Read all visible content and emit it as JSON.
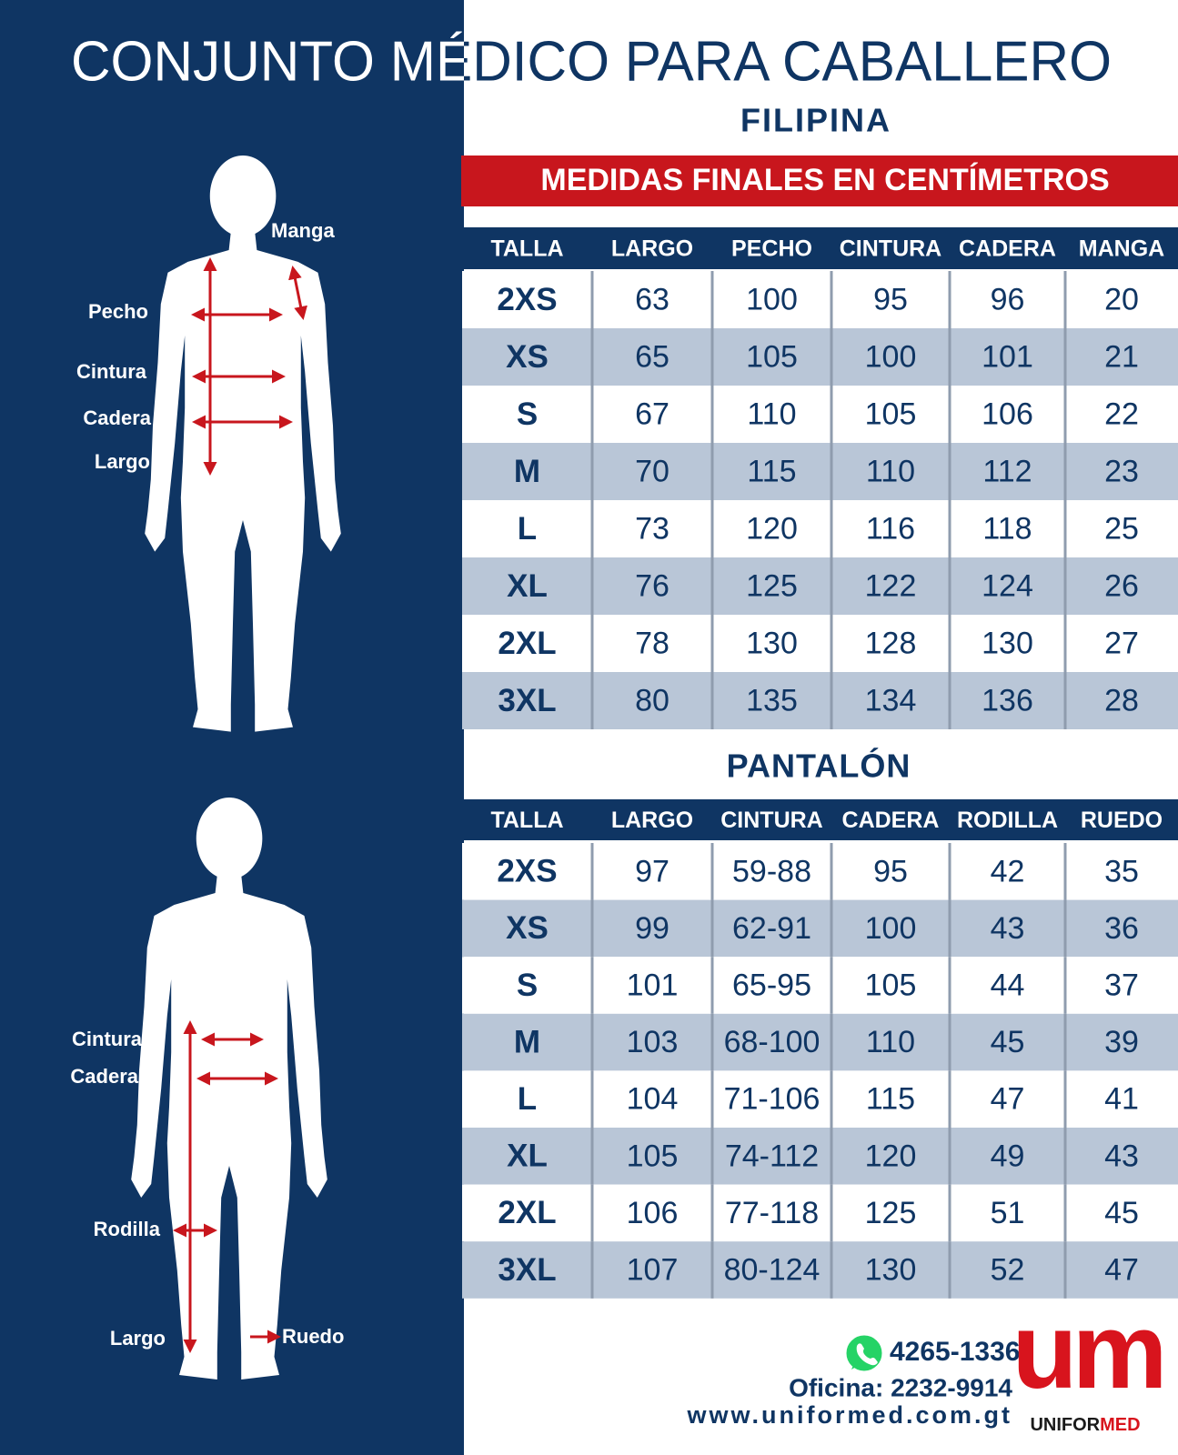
{
  "header": {
    "title": "CONJUNTO MÉDICO PARA CABALLERO"
  },
  "shirt": {
    "subtitle": "FILIPINA",
    "banner": "MEDIDAS FINALES EN CENTÍMETROS",
    "columns": [
      "TALLA",
      "LARGO",
      "PECHO",
      "CINTURA",
      "CADERA",
      "MANGA"
    ],
    "rows": [
      [
        "2XS",
        63,
        100,
        95,
        96,
        20
      ],
      [
        "XS",
        65,
        105,
        100,
        101,
        21
      ],
      [
        "S",
        67,
        110,
        105,
        106,
        22
      ],
      [
        "M",
        70,
        115,
        110,
        112,
        23
      ],
      [
        "L",
        73,
        120,
        116,
        118,
        25
      ],
      [
        "XL",
        76,
        125,
        122,
        124,
        26
      ],
      [
        "2XL",
        78,
        130,
        128,
        130,
        27
      ],
      [
        "3XL",
        80,
        135,
        134,
        136,
        28
      ]
    ]
  },
  "shirt_figure": {
    "labels": [
      "Manga",
      "Pecho",
      "Cintura",
      "Cadera",
      "Largo"
    ]
  },
  "pants": {
    "subtitle": "PANTALÓN",
    "columns": [
      "TALLA",
      "LARGO",
      "CINTURA",
      "CADERA",
      "RODILLA",
      "RUEDO"
    ],
    "rows": [
      [
        "2XS",
        97,
        "59-88",
        95,
        42,
        35
      ],
      [
        "XS",
        99,
        "62-91",
        100,
        43,
        36
      ],
      [
        "S",
        101,
        "65-95",
        105,
        44,
        37
      ],
      [
        "M",
        103,
        "68-100",
        110,
        45,
        39
      ],
      [
        "L",
        104,
        "71-106",
        115,
        47,
        41
      ],
      [
        "XL",
        105,
        "74-112",
        120,
        49,
        43
      ],
      [
        "2XL",
        106,
        "77-118",
        125,
        51,
        45
      ],
      [
        "3XL",
        107,
        "80-124",
        130,
        52,
        47
      ]
    ]
  },
  "pants_figure": {
    "labels": [
      "Cintura",
      "Cadera",
      "Rodilla",
      "Largo",
      "Ruedo"
    ]
  },
  "footer": {
    "whatsapp": "4265-1336",
    "office": "Oficina: 2232-9914",
    "website": "www.uniformed.com.gt"
  },
  "logo": {
    "monogram": "um",
    "name_part_1": "UNIFOR",
    "name_part_2": "MED"
  }
}
